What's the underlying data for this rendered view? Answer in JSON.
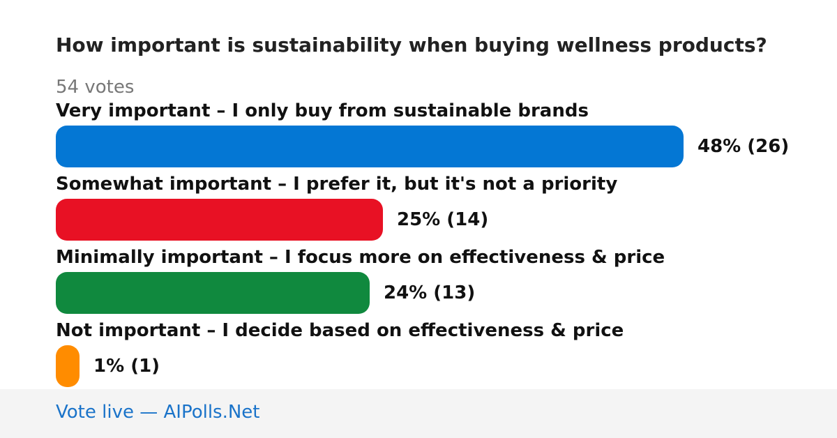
{
  "question": "How important is sustainability when buying wellness products?",
  "votes_label": "54 votes",
  "footer": {
    "link_text": "Vote live — AIPolls.Net"
  },
  "options": [
    {
      "label": "Very important – I only buy from sustainable brands",
      "percent": 48,
      "count": 26,
      "display": "48% (26)",
      "color": "#0477d4"
    },
    {
      "label": "Somewhat important – I prefer it, but it's not a priority",
      "percent": 25,
      "count": 14,
      "display": "25% (14)",
      "color": "#e81124"
    },
    {
      "label": "Minimally important – I focus more on effectiveness & price",
      "percent": 24,
      "count": 13,
      "display": "24% (13)",
      "color": "#10893e"
    },
    {
      "label": "Not important – I decide based on effectiveness & price",
      "percent": 1,
      "count": 1,
      "display": "1% (1)",
      "color": "#ff8c00"
    }
  ],
  "chart_data": {
    "type": "bar",
    "orientation": "horizontal",
    "title": "How important is sustainability when buying wellness products?",
    "subtitle": "54 votes",
    "categories": [
      "Very important – I only buy from sustainable brands",
      "Somewhat important – I prefer it, but it's not a priority",
      "Minimally important – I focus more on effectiveness & price",
      "Not important – I decide based on effectiveness & price"
    ],
    "values": [
      48,
      25,
      24,
      1
    ],
    "counts": [
      26,
      14,
      13,
      1
    ],
    "data_labels": [
      "48% (26)",
      "25% (14)",
      "24% (13)",
      "1% (1)"
    ],
    "colors": [
      "#0477d4",
      "#e81124",
      "#10893e",
      "#ff8c00"
    ],
    "xlim": [
      0,
      48
    ],
    "grid": false,
    "legend": "none"
  }
}
